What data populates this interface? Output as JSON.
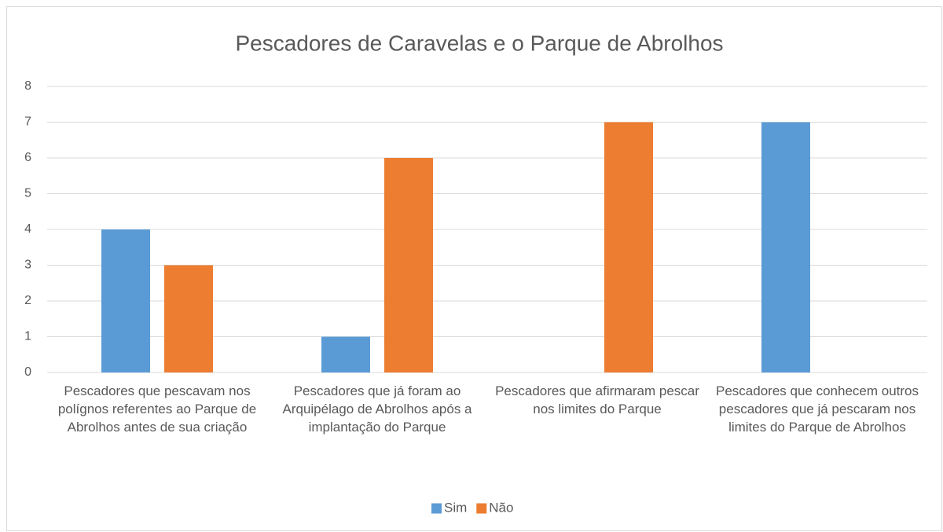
{
  "chart_data": {
    "type": "bar",
    "title": "Pescadores de Caravelas e o Parque de Abrolhos",
    "categories": [
      "Pescadores que pescavam nos polígnos referentes ao Parque de Abrolhos antes de sua criação",
      "Pescadores que já foram ao Arquipélago de Abrolhos após a implantação do Parque",
      "Pescadores que afirmaram pescar nos limites do Parque",
      "Pescadores que conhecem outros pescadores que já pescaram nos limites do Parque de Abrolhos"
    ],
    "series": [
      {
        "name": "Sim",
        "color": "#5b9bd5",
        "values": [
          4,
          1,
          0,
          7
        ]
      },
      {
        "name": "Não",
        "color": "#ed7d31",
        "values": [
          3,
          6,
          7,
          0
        ]
      }
    ],
    "ylim": [
      0,
      8
    ],
    "yticks": [
      0,
      1,
      2,
      3,
      4,
      5,
      6,
      7,
      8
    ],
    "grid": true,
    "legend": "bottom"
  }
}
